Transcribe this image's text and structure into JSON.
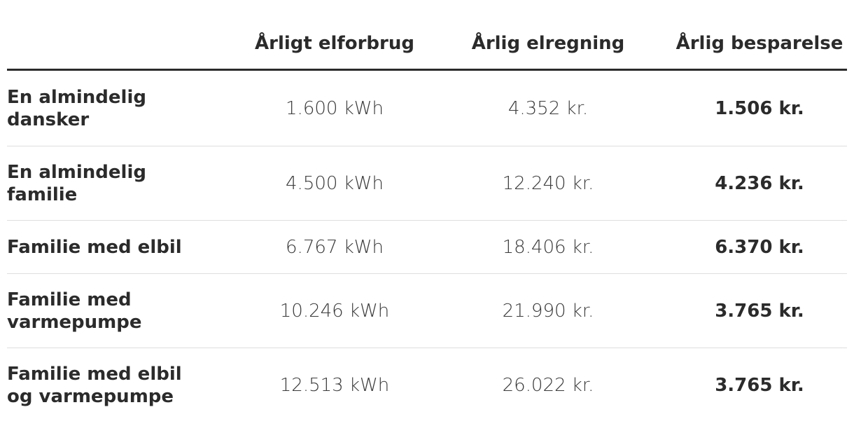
{
  "table": {
    "columns": [
      "Årligt elforbrug",
      "Årlig elregning",
      "Årlig besparelse"
    ],
    "rows": [
      [
        "En almindelig dansker",
        "1.600 kWh",
        "4.352 kr.",
        "1.506 kr."
      ],
      [
        "En almindelig familie",
        "4.500 kWh",
        "12.240 kr.",
        "4.236 kr."
      ],
      [
        "Familie med elbil",
        "6.767 kWh",
        "18.406 kr.",
        "6.370 kr."
      ],
      [
        "Familie med varmepumpe",
        "10.246 kWh",
        "21.990 kr.",
        "3.765 kr."
      ],
      [
        "Familie med elbil og varmepumpe",
        "12.513 kWh",
        "26.022 kr.",
        "3.765 kr."
      ]
    ]
  }
}
